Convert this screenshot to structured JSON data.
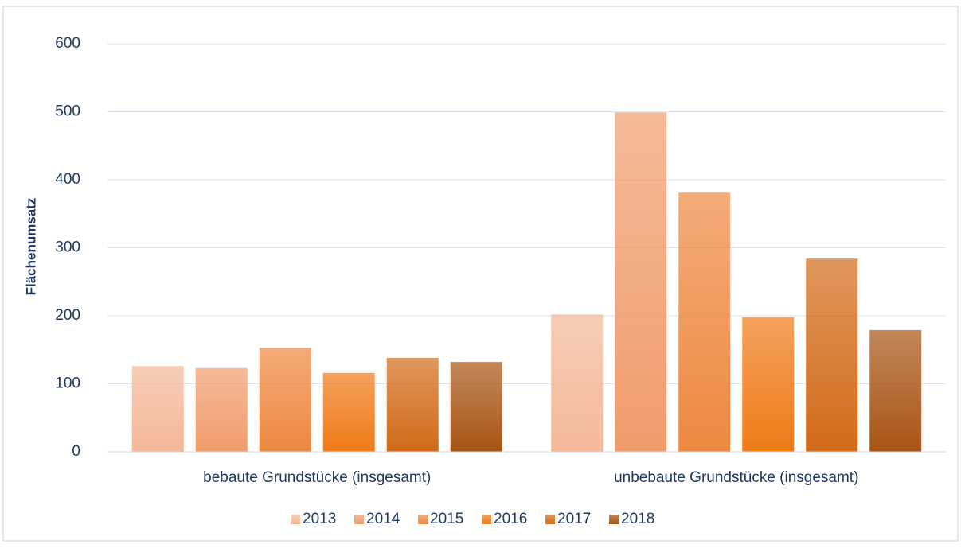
{
  "chart_data": {
    "type": "bar",
    "y_label": "Flächenumsatz",
    "categories": [
      "bebaute Grundstücke (insgesamt)",
      "unbebaute Grundstücke (insgesamt)"
    ],
    "series": [
      {
        "name": "2013",
        "color": "#f4b898",
        "values": [
          126,
          202
        ]
      },
      {
        "name": "2014",
        "color": "#f09c6c",
        "values": [
          123,
          499
        ]
      },
      {
        "name": "2015",
        "color": "#ee8840",
        "values": [
          153,
          381
        ]
      },
      {
        "name": "2016",
        "color": "#ef7a18",
        "values": [
          116,
          198
        ]
      },
      {
        "name": "2017",
        "color": "#d26a18",
        "values": [
          138,
          284
        ]
      },
      {
        "name": "2018",
        "color": "#a85414",
        "values": [
          132,
          179
        ]
      }
    ],
    "ylim": [
      0,
      600
    ],
    "yticks": [
      0,
      100,
      200,
      300,
      400,
      500,
      600
    ],
    "grid": true,
    "legend": "bottom"
  }
}
